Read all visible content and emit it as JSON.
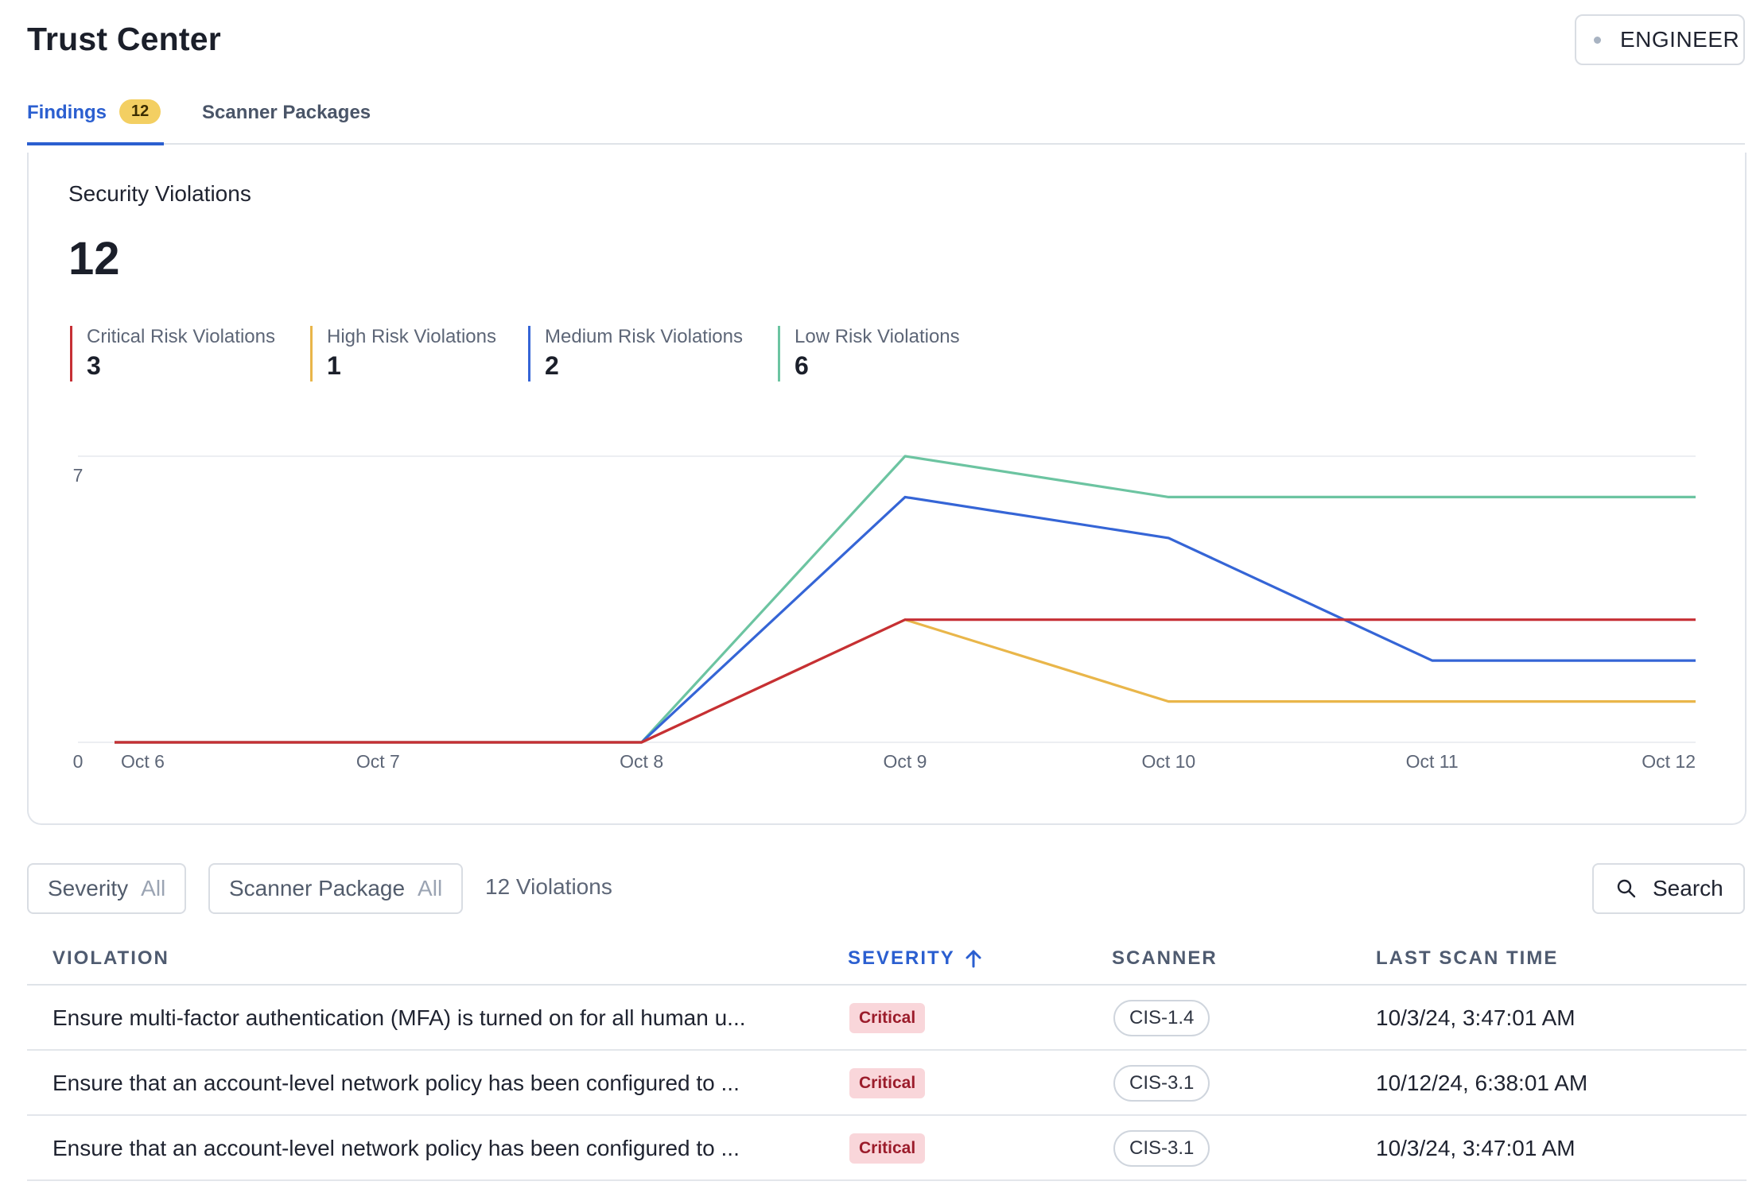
{
  "header": {
    "title": "Trust Center",
    "role_label": "ENGINEER"
  },
  "tabs": [
    {
      "label": "Findings",
      "badge": "12"
    },
    {
      "label": "Scanner Packages"
    }
  ],
  "summary": {
    "title": "Security Violations",
    "total": "12",
    "legend": [
      {
        "label": "Critical Risk Violations",
        "value": "3",
        "color": "#c62f35"
      },
      {
        "label": "High Risk Violations",
        "value": "1",
        "color": "#e9b64a"
      },
      {
        "label": "Medium Risk Violations",
        "value": "2",
        "color": "#3565d6"
      },
      {
        "label": "Low Risk Violations",
        "value": "6",
        "color": "#6cc4a1"
      }
    ]
  },
  "chart_data": {
    "type": "line",
    "x": [
      "Oct 6",
      "Oct 7",
      "Oct 8",
      "Oct 9",
      "Oct 10",
      "Oct 11",
      "Oct 12"
    ],
    "y_ticks": [
      "0",
      "7"
    ],
    "ylim": [
      0,
      7
    ],
    "grid": true,
    "series": [
      {
        "name": "Low Risk Violations",
        "color": "#6cc4a1",
        "values": [
          0,
          0,
          0,
          7,
          6,
          6,
          6
        ]
      },
      {
        "name": "Medium Risk Violations",
        "color": "#3565d6",
        "values": [
          0,
          0,
          0,
          6,
          5,
          2,
          2
        ]
      },
      {
        "name": "High Risk Violations",
        "color": "#e9b64a",
        "values": [
          0,
          0,
          0,
          3,
          1,
          1,
          1
        ]
      },
      {
        "name": "Critical Risk Violations",
        "color": "#c62f35",
        "values": [
          0,
          0,
          0,
          3,
          3,
          3,
          3
        ]
      }
    ]
  },
  "filters": {
    "severity_label": "Severity",
    "severity_value": "All",
    "package_label": "Scanner Package",
    "package_value": "All",
    "count_text": "12 Violations",
    "search_label": "Search",
    "search_icon": "search-icon"
  },
  "table": {
    "columns": [
      "VIOLATION",
      "SEVERITY",
      "SCANNER",
      "LAST SCAN TIME"
    ],
    "sort_icon": "arrow-up-icon",
    "rows": [
      {
        "violation": "Ensure multi-factor authentication (MFA) is turned on for all human u...",
        "severity": "Critical",
        "scanner": "CIS-1.4",
        "time": "10/3/24, 3:47:01 AM"
      },
      {
        "violation": "Ensure that an account-level network policy has been configured to ...",
        "severity": "Critical",
        "scanner": "CIS-3.1",
        "time": "10/12/24, 6:38:01 AM"
      },
      {
        "violation": "Ensure that an account-level network policy has been configured to ...",
        "severity": "Critical",
        "scanner": "CIS-3.1",
        "time": "10/3/24, 3:47:01 AM"
      }
    ]
  }
}
